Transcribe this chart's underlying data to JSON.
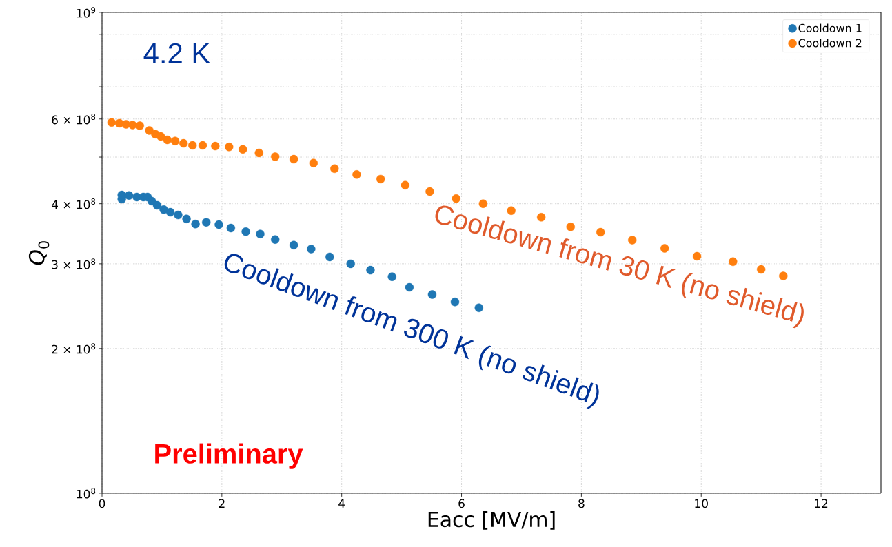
{
  "chart_data": {
    "type": "scatter",
    "xlabel": "Eacc [MV/m]",
    "ylabel": "*Q*$_{0}$",
    "annotations": [
      "4.2 K",
      "Cooldown from 30 K (no shield)",
      "Cooldown from 300 K (no shield)",
      "Preliminary"
    ],
    "series": [
      {
        "name": "Cooldown 1",
        "color": "#1f77b4",
        "x": [
          0.33,
          0.33,
          0.45,
          0.58,
          0.69,
          0.76,
          0.83,
          0.92,
          1.03,
          1.14,
          1.27,
          1.41,
          1.56,
          1.74,
          1.95,
          2.15,
          2.4,
          2.64,
          2.89,
          3.2,
          3.49,
          3.8,
          4.15,
          4.48,
          4.84,
          5.13,
          5.51,
          5.89,
          6.29
        ],
        "values": [
          409000000.0,
          417000000.0,
          416000000.0,
          413000000.0,
          413000000.0,
          413000000.0,
          405000000.0,
          397000000.0,
          389000000.0,
          384000000.0,
          379000000.0,
          372000000.0,
          363000000.0,
          366000000.0,
          362000000.0,
          356000000.0,
          350000000.0,
          346000000.0,
          337000000.0,
          328000000.0,
          322000000.0,
          310000000.0,
          300000000.0,
          291000000.0,
          282000000.0,
          268000000.0,
          259000000.0,
          250000000.0,
          243000000.0
        ]
      },
      {
        "name": "Cooldown 2",
        "color": "#ff7f0e",
        "x": [
          0.16,
          0.29,
          0.4,
          0.51,
          0.63,
          0.79,
          0.89,
          0.98,
          1.09,
          1.22,
          1.36,
          1.51,
          1.68,
          1.89,
          2.12,
          2.35,
          2.62,
          2.89,
          3.2,
          3.53,
          3.88,
          4.25,
          4.65,
          5.06,
          5.47,
          5.91,
          6.36,
          6.83,
          7.33,
          7.82,
          8.32,
          8.85,
          9.39,
          9.93,
          10.53,
          11.0,
          11.37
        ],
        "values": [
          590000000.0,
          588000000.0,
          585000000.0,
          583000000.0,
          581000000.0,
          568000000.0,
          558000000.0,
          552000000.0,
          543000000.0,
          540000000.0,
          534000000.0,
          529000000.0,
          529000000.0,
          527000000.0,
          525000000.0,
          519000000.0,
          510000000.0,
          501000000.0,
          495000000.0,
          486000000.0,
          473000000.0,
          460000000.0,
          450000000.0,
          437000000.0,
          424000000.0,
          410000000.0,
          400000000.0,
          387000000.0,
          375000000.0,
          358000000.0,
          349000000.0,
          336000000.0,
          323000000.0,
          311000000.0,
          303000000.0,
          292000000.0,
          283000000.0
        ]
      }
    ],
    "xlim": [
      0,
      13
    ],
    "ylim": [
      100000000.0,
      1000000000.0
    ],
    "xticks": [
      0,
      2,
      4,
      6,
      8,
      10,
      12
    ],
    "yticks": [
      {
        "value": 100000000.0,
        "label": "10$^{8}$"
      },
      {
        "value": 200000000.0,
        "label": "2 × 10$^{8}$"
      },
      {
        "value": 300000000.0,
        "label": "3 × 10$^{8}$"
      },
      {
        "value": 400000000.0,
        "label": "4 × 10$^{8}$"
      },
      {
        "value": 500000000.0,
        "label": null
      },
      {
        "value": 600000000.0,
        "label": "6 × 10$^{8}$"
      },
      {
        "value": 700000000.0,
        "label": null
      },
      {
        "value": 800000000.0,
        "label": null
      },
      {
        "value": 900000000.0,
        "label": null
      },
      {
        "value": 1000000000.0,
        "label": "10$^{9}$"
      }
    ],
    "log": "y",
    "grid": true,
    "legend": "top right"
  }
}
